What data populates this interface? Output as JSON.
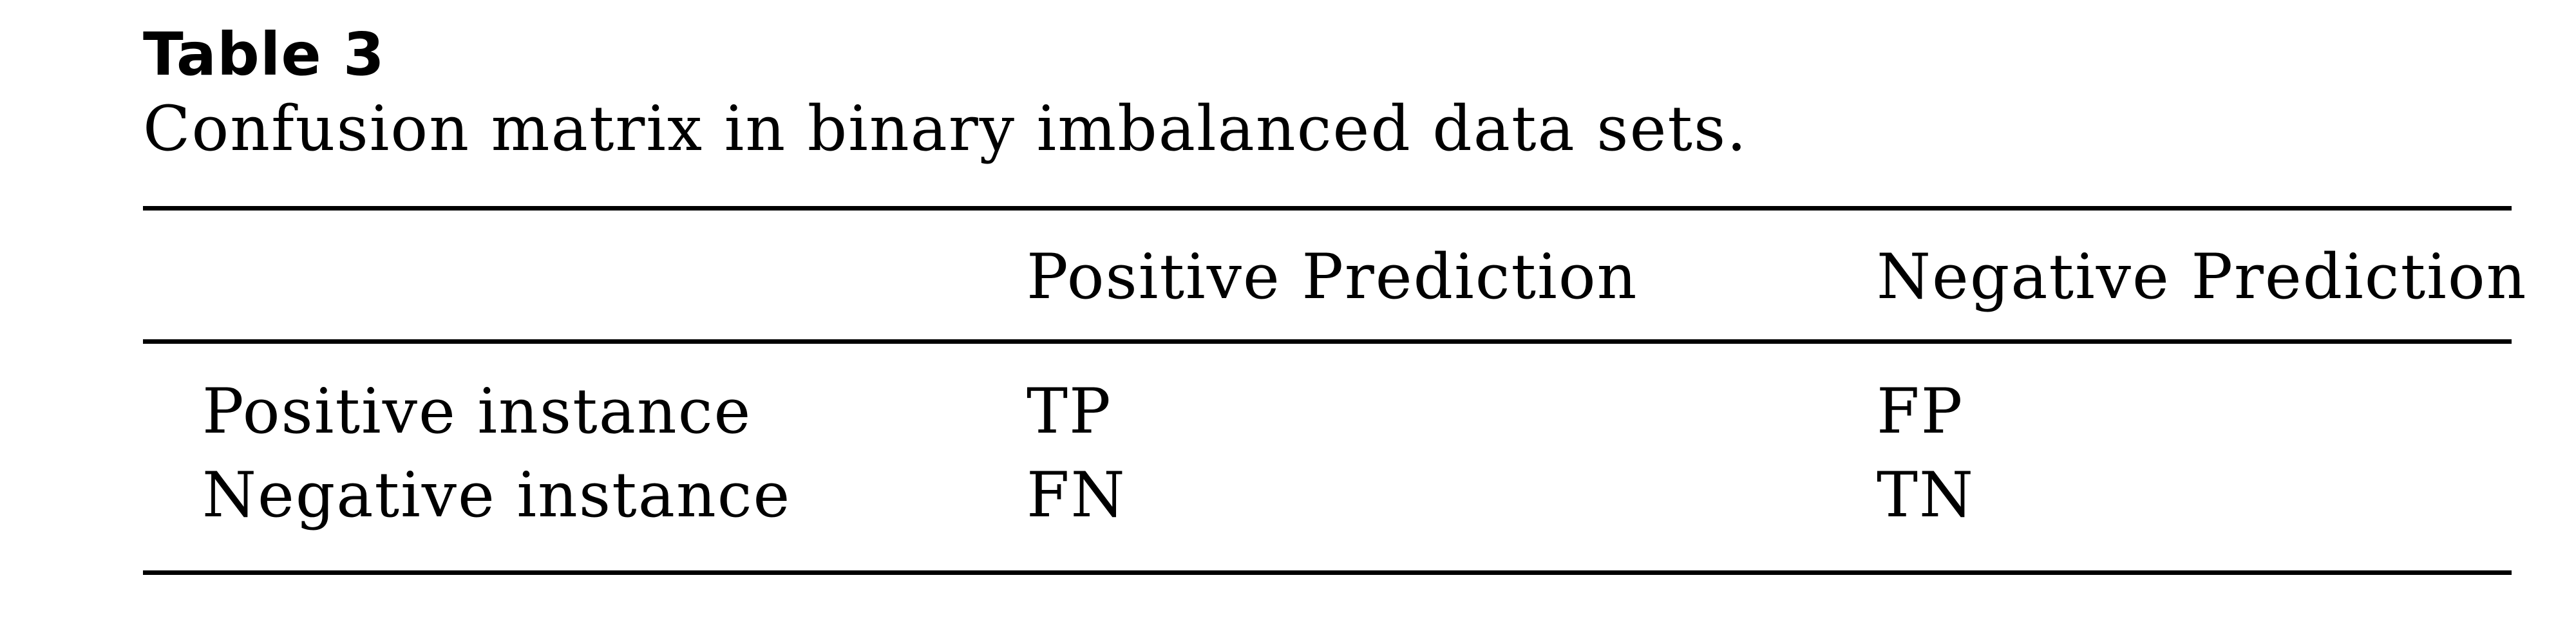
{
  "table": {
    "label": "Table 3",
    "caption": "Confusion matrix in binary imbalanced data sets.",
    "columns": [
      "",
      "Positive Prediction",
      "Negative Prediction"
    ],
    "rows": [
      [
        "Positive instance",
        "TP",
        "FP"
      ],
      [
        "Negative instance",
        "FN",
        "TN"
      ]
    ]
  }
}
